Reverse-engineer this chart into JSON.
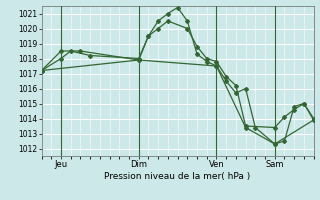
{
  "background_color": "#cce8e8",
  "plot_bg_color": "#cce8e8",
  "grid_color": "#ffffff",
  "line_color": "#336633",
  "marker_color": "#336633",
  "xlabel": "Pression niveau de la mer( hPa )",
  "ylim": [
    1011.5,
    1021.5
  ],
  "yticks": [
    1012,
    1013,
    1014,
    1015,
    1016,
    1017,
    1018,
    1019,
    1020,
    1021
  ],
  "xtick_labels": [
    "Jeu",
    "Dim",
    "Ven",
    "Sam"
  ],
  "xtick_positions": [
    2,
    10,
    18,
    24
  ],
  "vline_positions": [
    2,
    10,
    18,
    24
  ],
  "xlim": [
    0,
    28
  ],
  "series1": {
    "x": [
      0,
      2,
      3,
      5,
      10,
      11,
      12,
      13,
      15,
      16,
      17,
      18,
      19,
      20,
      21,
      24,
      25,
      26,
      27,
      28
    ],
    "y": [
      1017.2,
      1018.0,
      1018.5,
      1018.2,
      1018.0,
      1019.5,
      1020.0,
      1020.5,
      1020.0,
      1018.8,
      1018.0,
      1017.8,
      1016.8,
      1016.2,
      1013.5,
      1013.4,
      1014.1,
      1014.6,
      1015.0,
      1014.0
    ]
  },
  "series2": {
    "x": [
      0,
      2,
      4,
      10,
      11,
      12,
      13,
      14,
      15,
      16,
      17,
      18,
      19,
      20,
      21,
      22,
      24,
      25,
      26,
      27,
      28
    ],
    "y": [
      1017.2,
      1018.5,
      1018.5,
      1017.9,
      1019.5,
      1020.5,
      1021.0,
      1021.4,
      1020.5,
      1018.3,
      1017.8,
      1017.5,
      1016.5,
      1015.7,
      1016.0,
      1013.4,
      1012.3,
      1012.5,
      1014.8,
      1015.0,
      1013.9
    ]
  },
  "series3": {
    "x": [
      0,
      10,
      18,
      21,
      24,
      28
    ],
    "y": [
      1017.2,
      1017.9,
      1017.5,
      1013.4,
      1012.3,
      1013.9
    ]
  }
}
